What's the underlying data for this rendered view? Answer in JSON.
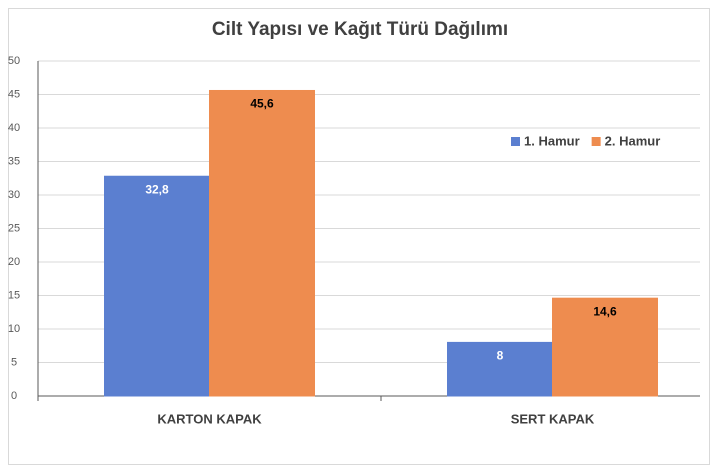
{
  "chart_data": {
    "type": "bar",
    "title": "Cilt Yapısı ve Kağıt Türü Dağılımı",
    "categories": [
      "KARTON KAPAK",
      "SERT KAPAK"
    ],
    "series": [
      {
        "name": "1. Hamur",
        "color": "#5b7fd0",
        "values": [
          32.8,
          8
        ],
        "value_labels": [
          "32,8",
          "8"
        ]
      },
      {
        "name": "2. Hamur",
        "color": "#ee8c4f",
        "values": [
          45.6,
          14.6
        ],
        "value_labels": [
          "45,6",
          "14,6"
        ]
      }
    ],
    "ylim": [
      0,
      50
    ],
    "yticks": [
      0,
      5,
      10,
      15,
      20,
      25,
      30,
      35,
      40,
      45,
      50
    ],
    "grid": true,
    "legend": "upper right"
  }
}
